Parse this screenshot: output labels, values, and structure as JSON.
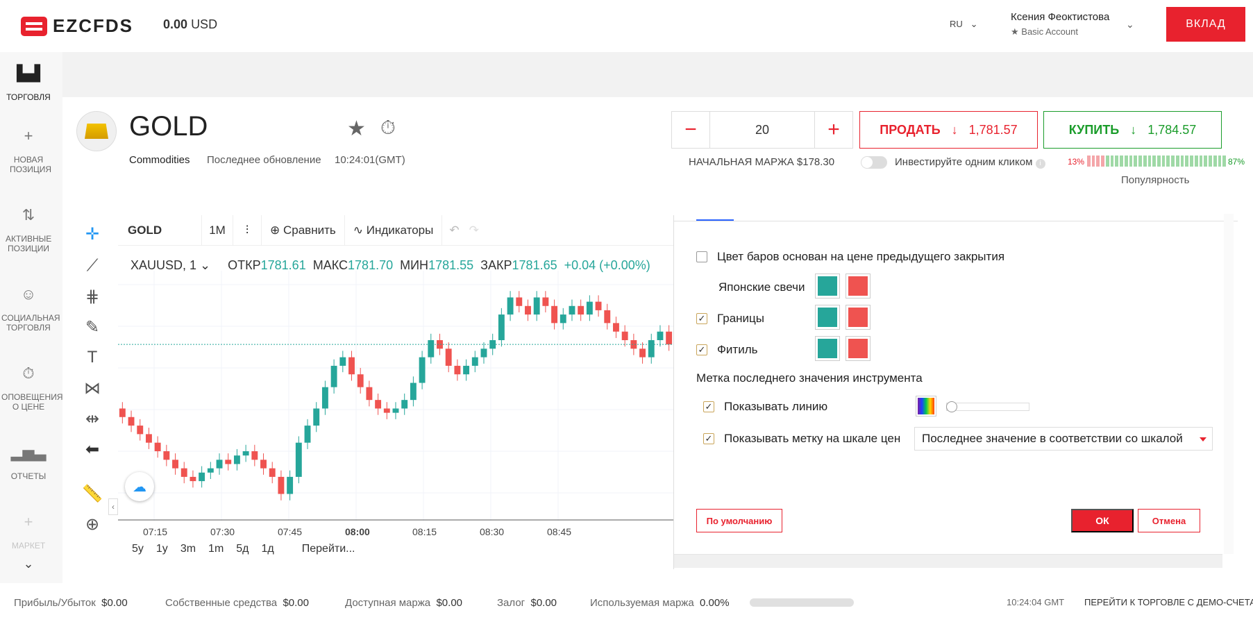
{
  "header": {
    "logo_text": "EZCFDS",
    "balance_amount": "0.00",
    "balance_currency": "USD",
    "language": "RU",
    "user_name": "Ксения Феоктистова",
    "account_type": "Basic Account",
    "deposit_label": "ВКЛАД"
  },
  "sidebar": {
    "items": [
      {
        "label": "ТОРГОВЛЯ",
        "icon": "chart-bars-icon"
      },
      {
        "label": "НОВАЯ ПОЗИЦИЯ",
        "icon": "plus-icon"
      },
      {
        "label": "АКТИВНЫЕ ПОЗИЦИИ",
        "icon": "arrows-updown-icon"
      },
      {
        "label": "СОЦИАЛЬНАЯ ТОРГОВЛЯ",
        "icon": "face-icon"
      },
      {
        "label": "ОПОВЕЩЕНИЯ О ЦЕНЕ",
        "icon": "stopwatch-icon"
      },
      {
        "label": "ОТЧЕТЫ",
        "icon": "bar-chart-icon"
      },
      {
        "label": "МАРКЕТ",
        "icon": "plus-icon"
      }
    ]
  },
  "instrument": {
    "name": "GOLD",
    "category": "Commodities",
    "updated_label": "Последнее обновление",
    "updated_time": "10:24:01(GMT)"
  },
  "trade": {
    "quantity": "20",
    "minus": "−",
    "plus": "+",
    "sell_label": "ПРОДАТЬ",
    "sell_price": "1,781.57",
    "buy_label": "КУПИТЬ",
    "buy_price": "1,784.57",
    "margin_label": "НАЧАЛЬНАЯ МАРЖА $178.30",
    "one_click_label": "Инвестируйте одним кликом",
    "popularity_sell": "13%",
    "popularity_buy": "87%",
    "popularity_sell_fraction": 0.13,
    "popularity_label": "Популярность"
  },
  "chart_toolbar": {
    "symbol": "GOLD",
    "interval": "1M",
    "compare": "Сравнить",
    "indicators": "Индикаторы"
  },
  "ohlc": {
    "symbol": "XAUUSD, 1",
    "open_label": "ОТКР",
    "open": "1781.61",
    "high_label": "МАКС",
    "high": "1781.70",
    "low_label": "МИН",
    "low": "1781.55",
    "close_label": "ЗАКР",
    "close": "1781.65",
    "change": "+0.04 (+0.00%)"
  },
  "chart_data": {
    "type": "candlestick",
    "x_ticks": [
      "07:15",
      "07:30",
      "07:45",
      "08:00",
      "08:15",
      "08:30",
      "08:45"
    ],
    "bull_color": "#26a69a",
    "bear_color": "#ef5350",
    "close_series": [
      1781.48,
      1781.46,
      1781.44,
      1781.42,
      1781.4,
      1781.38,
      1781.36,
      1781.34,
      1781.33,
      1781.35,
      1781.36,
      1781.38,
      1781.37,
      1781.39,
      1781.4,
      1781.38,
      1781.36,
      1781.34,
      1781.3,
      1781.34,
      1781.42,
      1781.46,
      1781.5,
      1781.55,
      1781.6,
      1781.62,
      1781.58,
      1781.55,
      1781.52,
      1781.5,
      1781.49,
      1781.5,
      1781.52,
      1781.56,
      1781.62,
      1781.66,
      1781.64,
      1781.6,
      1781.58,
      1781.6,
      1781.62,
      1781.64,
      1781.66,
      1781.72,
      1781.76,
      1781.74,
      1781.72,
      1781.76,
      1781.74,
      1781.7,
      1781.72,
      1781.74,
      1781.72,
      1781.75,
      1781.73,
      1781.7,
      1781.68,
      1781.66,
      1781.64,
      1781.62,
      1781.66,
      1781.68,
      1781.65
    ]
  },
  "time_ranges": [
    "5y",
    "1y",
    "3m",
    "1m",
    "5д",
    "1д"
  ],
  "goto_label": "Перейти...",
  "dialog": {
    "bar_color_label": "Цвет баров основан на цене предыдущего закрытия",
    "candles_label": "Японские свечи",
    "borders_label": "Границы",
    "wick_label": "Фитиль",
    "section_title": "Метка последнего значения инструмента",
    "show_line_label": "Показывать линию",
    "show_label_label": "Показывать метку на шкале цен",
    "select_value": "Последнее значение в соответствии со шкалой",
    "default_btn": "По умолчанию",
    "ok_btn": "ОК",
    "cancel_btn": "Отмена",
    "up_color": "#26a69a",
    "down_color": "#ef5350"
  },
  "footer": {
    "pnl_label": "Прибыль/Убыток",
    "pnl": "$0.00",
    "equity_label": "Собственные средства",
    "equity": "$0.00",
    "free_margin_label": "Доступная маржа",
    "free_margin": "$0.00",
    "deposit_label": "Залог",
    "deposit": "$0.00",
    "used_margin_label": "Используемая маржа",
    "used_margin": "0.00%",
    "time": "10:24:04 GMT",
    "demo_link": "ПЕРЕЙТИ К ТОРГОВЛЕ С ДЕМО-СЧЕТА"
  }
}
